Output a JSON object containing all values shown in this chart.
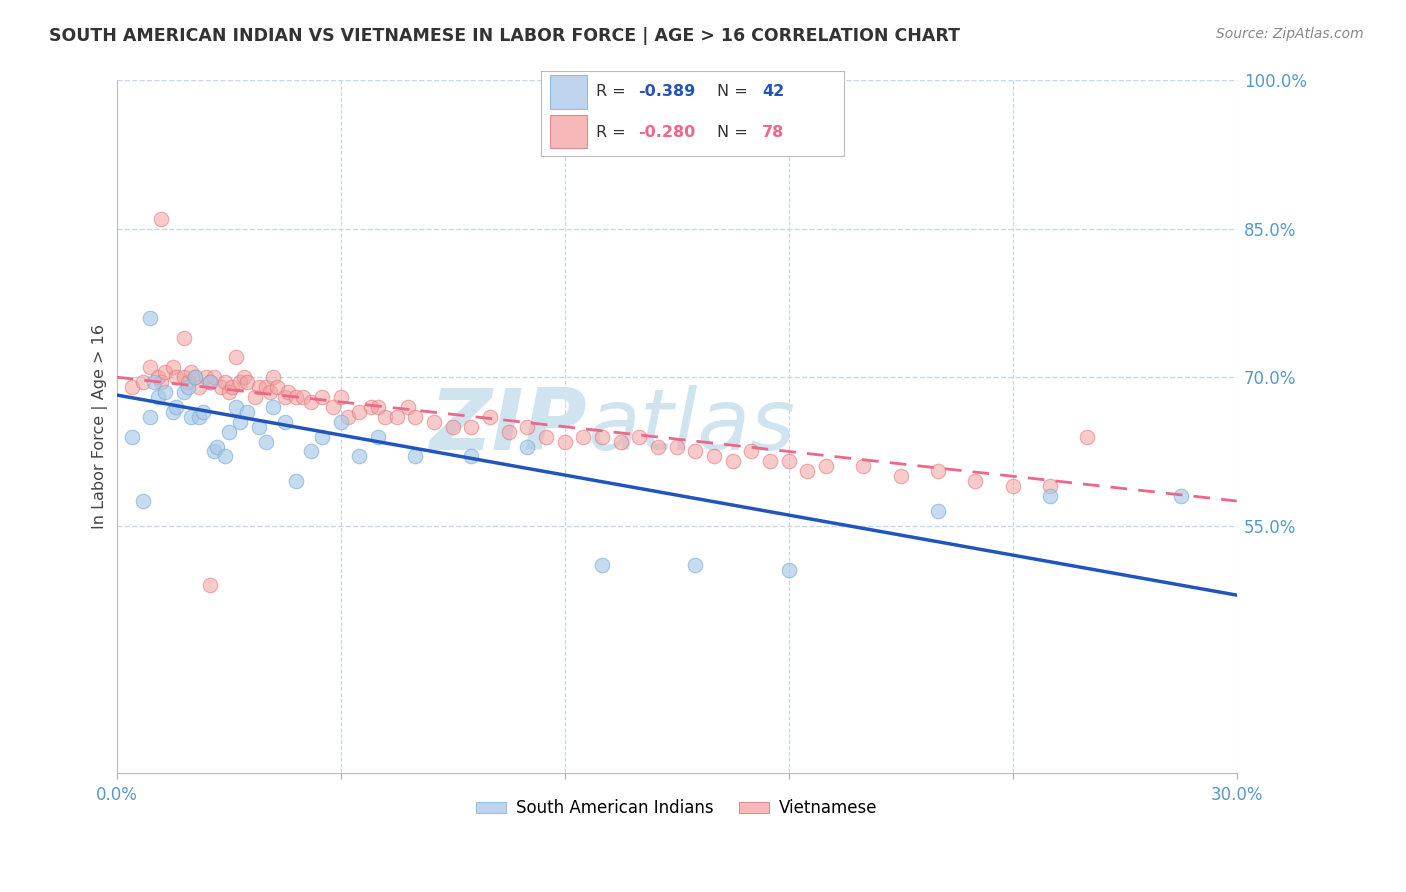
{
  "title": "SOUTH AMERICAN INDIAN VS VIETNAMESE IN LABOR FORCE | AGE > 16 CORRELATION CHART",
  "source": "Source: ZipAtlas.com",
  "ylabel": "In Labor Force | Age > 16",
  "xlim": [
    0.0,
    0.3
  ],
  "ylim": [
    0.3,
    1.0
  ],
  "legend1_R": "-0.389",
  "legend1_N": "42",
  "legend2_R": "-0.280",
  "legend2_N": "78",
  "blue_color": "#A8C8E8",
  "blue_edge_color": "#7AAFD4",
  "pink_color": "#F4A0A0",
  "pink_edge_color": "#E07070",
  "blue_line_color": "#2255BB",
  "pink_line_color": "#EE6688",
  "watermark_color": "#D0E4F0",
  "grid_color": "#C8D8E8",
  "tick_color": "#5599CC",
  "blue_line_y0": 0.682,
  "blue_line_y1": 0.48,
  "pink_line_y0": 0.7,
  "pink_line_y1": 0.575,
  "blue_scatter_x": [
    0.004,
    0.007,
    0.009,
    0.01,
    0.011,
    0.013,
    0.015,
    0.016,
    0.018,
    0.019,
    0.02,
    0.021,
    0.022,
    0.023,
    0.025,
    0.026,
    0.027,
    0.029,
    0.03,
    0.032,
    0.033,
    0.035,
    0.038,
    0.04,
    0.042,
    0.045,
    0.048,
    0.052,
    0.055,
    0.06,
    0.065,
    0.07,
    0.08,
    0.095,
    0.11,
    0.13,
    0.155,
    0.18,
    0.22,
    0.25,
    0.285,
    0.009
  ],
  "blue_scatter_y": [
    0.64,
    0.575,
    0.66,
    0.695,
    0.68,
    0.685,
    0.665,
    0.67,
    0.685,
    0.69,
    0.66,
    0.7,
    0.66,
    0.665,
    0.695,
    0.625,
    0.63,
    0.62,
    0.645,
    0.67,
    0.655,
    0.665,
    0.65,
    0.635,
    0.67,
    0.655,
    0.595,
    0.625,
    0.64,
    0.655,
    0.62,
    0.64,
    0.62,
    0.62,
    0.63,
    0.51,
    0.51,
    0.505,
    0.565,
    0.58,
    0.58,
    0.76
  ],
  "pink_scatter_x": [
    0.004,
    0.007,
    0.009,
    0.011,
    0.012,
    0.013,
    0.015,
    0.016,
    0.018,
    0.019,
    0.02,
    0.021,
    0.022,
    0.024,
    0.025,
    0.026,
    0.028,
    0.029,
    0.03,
    0.031,
    0.032,
    0.033,
    0.034,
    0.035,
    0.037,
    0.038,
    0.04,
    0.041,
    0.042,
    0.043,
    0.045,
    0.046,
    0.048,
    0.05,
    0.052,
    0.055,
    0.058,
    0.06,
    0.062,
    0.065,
    0.068,
    0.07,
    0.072,
    0.075,
    0.078,
    0.08,
    0.085,
    0.09,
    0.095,
    0.1,
    0.105,
    0.11,
    0.115,
    0.12,
    0.125,
    0.13,
    0.135,
    0.14,
    0.145,
    0.15,
    0.155,
    0.16,
    0.165,
    0.17,
    0.175,
    0.18,
    0.185,
    0.19,
    0.2,
    0.21,
    0.22,
    0.23,
    0.24,
    0.25,
    0.26,
    0.012,
    0.018,
    0.025
  ],
  "pink_scatter_y": [
    0.69,
    0.695,
    0.71,
    0.7,
    0.695,
    0.705,
    0.71,
    0.7,
    0.7,
    0.695,
    0.705,
    0.7,
    0.69,
    0.7,
    0.695,
    0.7,
    0.69,
    0.695,
    0.685,
    0.69,
    0.72,
    0.695,
    0.7,
    0.695,
    0.68,
    0.69,
    0.69,
    0.685,
    0.7,
    0.69,
    0.68,
    0.685,
    0.68,
    0.68,
    0.675,
    0.68,
    0.67,
    0.68,
    0.66,
    0.665,
    0.67,
    0.67,
    0.66,
    0.66,
    0.67,
    0.66,
    0.655,
    0.65,
    0.65,
    0.66,
    0.645,
    0.65,
    0.64,
    0.635,
    0.64,
    0.64,
    0.635,
    0.64,
    0.63,
    0.63,
    0.625,
    0.62,
    0.615,
    0.625,
    0.615,
    0.615,
    0.605,
    0.61,
    0.61,
    0.6,
    0.605,
    0.595,
    0.59,
    0.59,
    0.64,
    0.86,
    0.74,
    0.49
  ]
}
